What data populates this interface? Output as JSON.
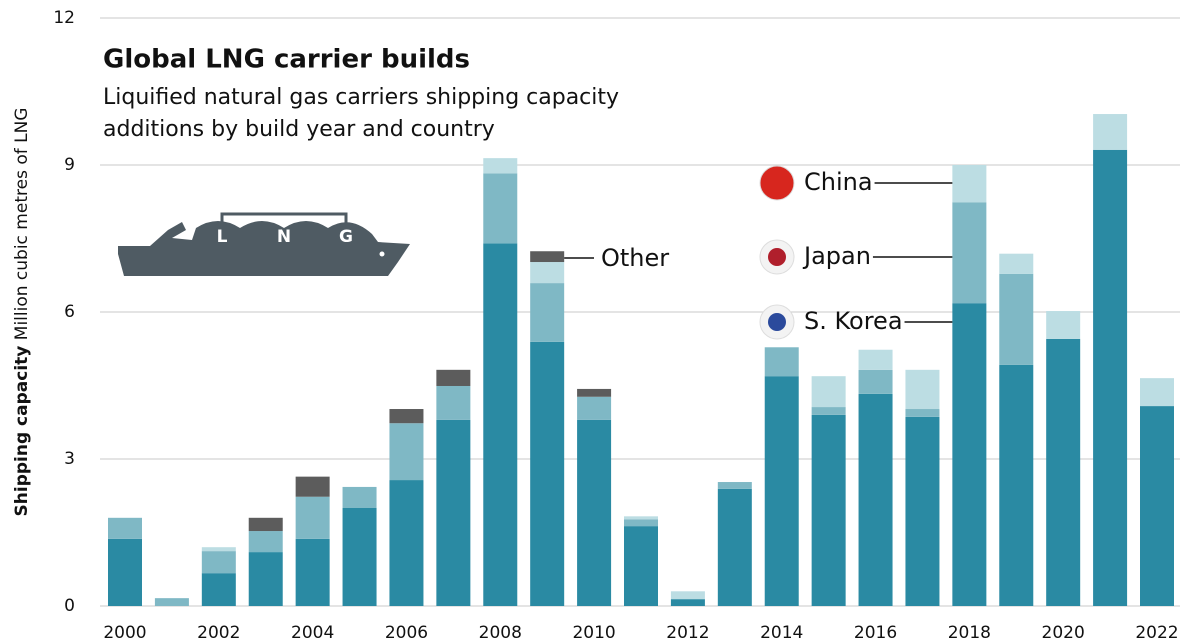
{
  "chart_data": {
    "type": "stacked_bar",
    "title": "Global LNG carrier builds",
    "subtitle_lines": [
      "Liquified natural gas carriers shipping capacity",
      "additions by build year and country"
    ],
    "ylabel_bold": "Shipping capacity",
    "ylabel": "Million cubic metres of LNG",
    "ship_icon_letters": [
      "L",
      "N",
      "G"
    ],
    "categories": [
      "2000",
      null,
      "2002",
      null,
      "2004",
      null,
      "2006",
      null,
      "2008",
      null,
      "2010",
      null,
      "2012",
      null,
      "2014",
      null,
      "2016",
      null,
      "2018",
      null,
      "2020",
      null,
      "2022"
    ],
    "series": [
      {
        "name": "S. Korea",
        "color": "#2a8aa3",
        "values": [
          1.37,
          0,
          0.67,
          1.1,
          1.37,
          2.0,
          2.57,
          3.8,
          7.4,
          5.39,
          3.8,
          1.63,
          0.14,
          2.39,
          4.69,
          3.9,
          4.33,
          3.86,
          6.18,
          4.92,
          5.45,
          9.31,
          4.08
        ]
      },
      {
        "name": "Japan",
        "color": "#7fb8c5",
        "values": [
          0.43,
          0.16,
          0.45,
          0.43,
          0.86,
          0.43,
          1.16,
          0.69,
          1.43,
          1.2,
          0.47,
          0.14,
          0,
          0.14,
          0.59,
          0.16,
          0.49,
          0.16,
          2.06,
          1.86,
          0,
          0,
          0
        ]
      },
      {
        "name": "China",
        "color": "#bcdde3",
        "values": [
          0,
          0,
          0.08,
          0,
          0,
          0,
          0,
          0,
          0.31,
          0.43,
          0,
          0.06,
          0.16,
          0,
          0,
          0.63,
          0.41,
          0.8,
          0.76,
          0.41,
          0.57,
          0.73,
          0.57
        ]
      },
      {
        "name": "Other",
        "color": "#5c5c5c",
        "values": [
          0,
          0,
          0,
          0.27,
          0.41,
          0,
          0.29,
          0.33,
          0,
          0.22,
          0.16,
          0,
          0,
          0,
          0,
          0,
          0,
          0,
          0,
          0,
          0,
          0,
          0
        ]
      }
    ],
    "ylim": [
      0,
      12
    ],
    "yticks": [
      0,
      3,
      6,
      9,
      12
    ],
    "grid": true
  }
}
